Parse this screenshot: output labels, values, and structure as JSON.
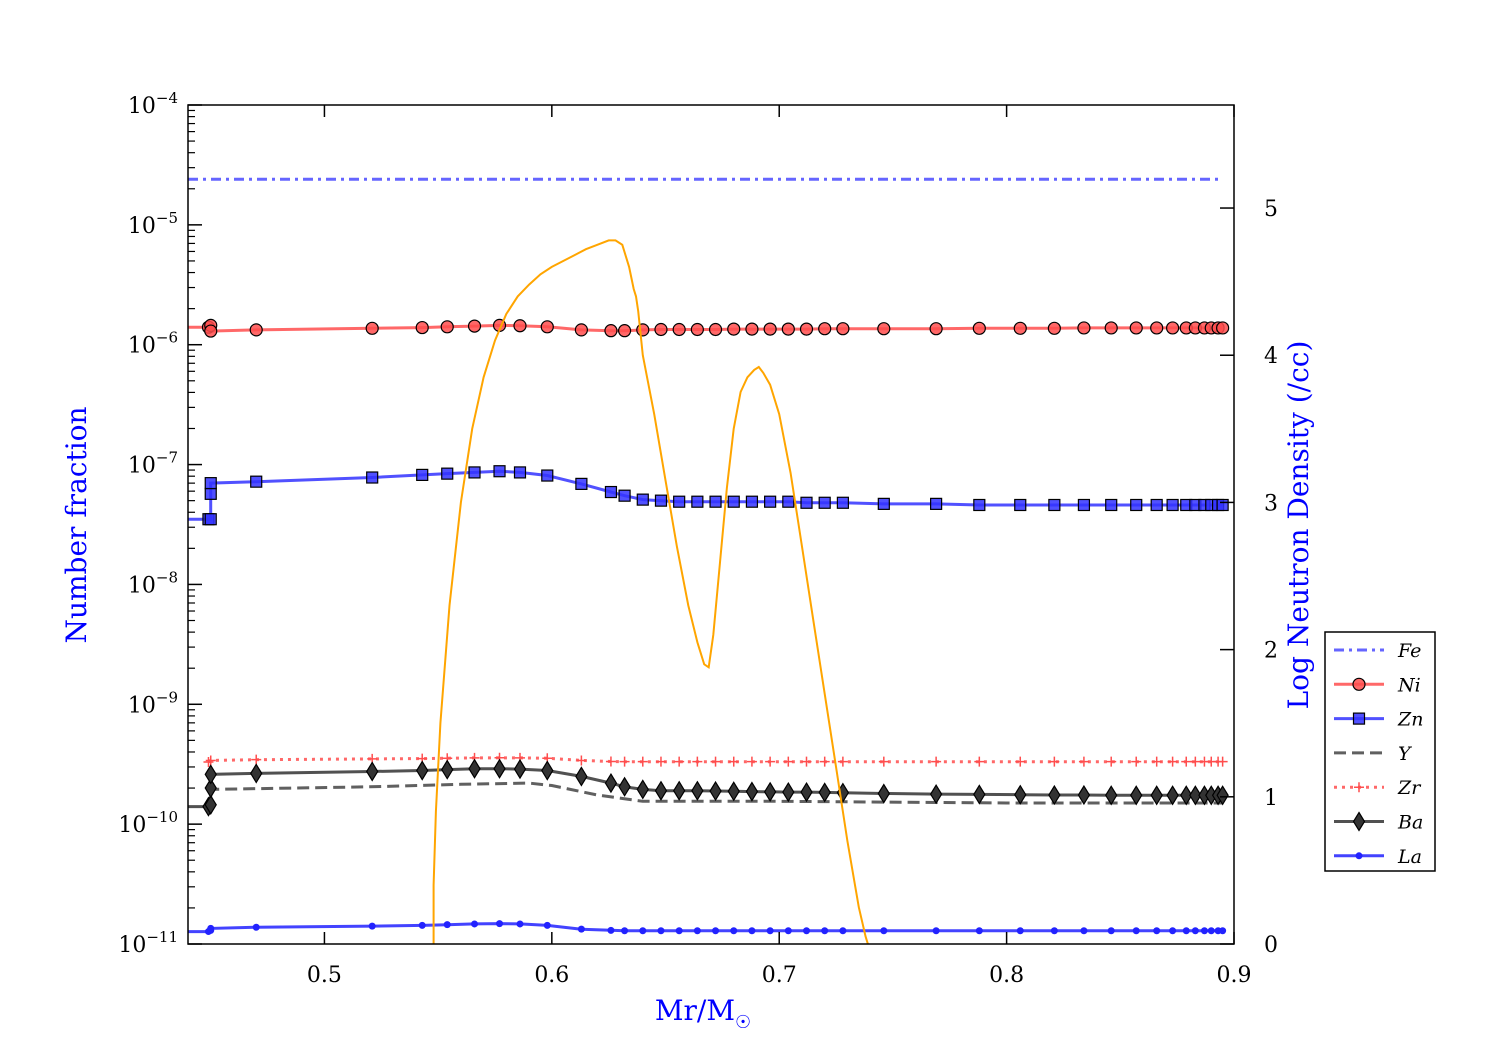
{
  "chart_data": {
    "type": "line",
    "xlabel": "Mr/M",
    "xlabel_symbol": "☉",
    "ylabel_left": "Number fraction",
    "ylabel_right": "Log Neutron Density (/cc)",
    "label_color": "#0000ff",
    "xlim": [
      0.44,
      0.9
    ],
    "xticks": [
      0.5,
      0.6,
      0.7,
      0.8,
      0.9
    ],
    "xtick_labels": [
      "0.5",
      "0.6",
      "0.7",
      "0.8",
      "0.9"
    ],
    "ylim_left_log10": [
      -11,
      -4
    ],
    "ytick_left_labels": [
      {
        "base": "10",
        "exp": "−4",
        "value": -4
      },
      {
        "base": "10",
        "exp": "−5",
        "value": -5
      },
      {
        "base": "10",
        "exp": "−6",
        "value": -6
      },
      {
        "base": "10",
        "exp": "−7",
        "value": -7
      },
      {
        "base": "10",
        "exp": "−8",
        "value": -8
      },
      {
        "base": "10",
        "exp": "−9",
        "value": -9
      },
      {
        "base": "10",
        "exp": "−10",
        "value": -10
      },
      {
        "base": "10",
        "exp": "−11",
        "value": -11
      }
    ],
    "ylim_right": [
      0,
      5.7
    ],
    "yticks_right": [
      0,
      1,
      2,
      3,
      4,
      5
    ],
    "ytick_right_labels": [
      "0",
      "1",
      "2",
      "3",
      "4",
      "5"
    ],
    "legend_position": "right, outside plot",
    "series": [
      {
        "name": "Fe",
        "color": "#4a4aff",
        "dash": "dashdot",
        "marker": "none",
        "x": [
          0.44,
          0.895
        ],
        "y": [
          2.4e-05,
          2.4e-05
        ]
      },
      {
        "name": "Ni",
        "color": "#ff4d4d",
        "dash": "solid",
        "marker": "circle",
        "x": [
          0.44,
          0.449,
          0.45,
          0.45,
          0.47,
          0.521,
          0.543,
          0.554,
          0.566,
          0.577,
          0.586,
          0.598,
          0.613,
          0.626,
          0.632,
          0.64,
          0.648,
          0.656,
          0.664,
          0.672,
          0.68,
          0.688,
          0.696,
          0.704,
          0.712,
          0.72,
          0.728,
          0.746,
          0.769,
          0.788,
          0.806,
          0.821,
          0.834,
          0.846,
          0.857,
          0.866,
          0.873,
          0.879,
          0.883,
          0.887,
          0.89,
          0.893,
          0.895
        ],
        "y": [
          1.4e-06,
          1.4e-06,
          1.45e-06,
          1.3e-06,
          1.33e-06,
          1.37e-06,
          1.39e-06,
          1.41e-06,
          1.43e-06,
          1.45e-06,
          1.44e-06,
          1.41e-06,
          1.33e-06,
          1.31e-06,
          1.31e-06,
          1.33e-06,
          1.34e-06,
          1.34e-06,
          1.34e-06,
          1.34e-06,
          1.35e-06,
          1.35e-06,
          1.35e-06,
          1.35e-06,
          1.35e-06,
          1.36e-06,
          1.36e-06,
          1.36e-06,
          1.36e-06,
          1.37e-06,
          1.37e-06,
          1.37e-06,
          1.38e-06,
          1.38e-06,
          1.38e-06,
          1.38e-06,
          1.38e-06,
          1.38e-06,
          1.38e-06,
          1.38e-06,
          1.38e-06,
          1.38e-06,
          1.38e-06
        ]
      },
      {
        "name": "Zn",
        "color": "#3333ff",
        "dash": "solid",
        "marker": "square",
        "x": [
          0.44,
          0.449,
          0.45,
          0.45,
          0.45,
          0.47,
          0.521,
          0.543,
          0.554,
          0.566,
          0.577,
          0.586,
          0.598,
          0.613,
          0.626,
          0.632,
          0.64,
          0.648,
          0.656,
          0.664,
          0.672,
          0.68,
          0.688,
          0.696,
          0.704,
          0.712,
          0.72,
          0.728,
          0.746,
          0.769,
          0.788,
          0.806,
          0.821,
          0.834,
          0.846,
          0.857,
          0.866,
          0.873,
          0.879,
          0.883,
          0.887,
          0.89,
          0.893,
          0.895
        ],
        "y": [
          3.5e-08,
          3.5e-08,
          3.5e-08,
          5.7e-08,
          7e-08,
          7.2e-08,
          7.8e-08,
          8.2e-08,
          8.4e-08,
          8.6e-08,
          8.8e-08,
          8.6e-08,
          8.1e-08,
          6.9e-08,
          5.9e-08,
          5.5e-08,
          5.1e-08,
          5e-08,
          4.9e-08,
          4.9e-08,
          4.9e-08,
          4.9e-08,
          4.9e-08,
          4.9e-08,
          4.9e-08,
          4.8e-08,
          4.8e-08,
          4.8e-08,
          4.7e-08,
          4.7e-08,
          4.6e-08,
          4.6e-08,
          4.6e-08,
          4.6e-08,
          4.6e-08,
          4.6e-08,
          4.6e-08,
          4.6e-08,
          4.6e-08,
          4.6e-08,
          4.6e-08,
          4.6e-08,
          4.6e-08,
          4.6e-08
        ]
      },
      {
        "name": "Y",
        "color": "#444444",
        "dash": "dashed",
        "marker": "none",
        "x": [
          0.449,
          0.45,
          0.45,
          0.52,
          0.56,
          0.59,
          0.6,
          0.62,
          0.64,
          0.7,
          0.8,
          0.895
        ],
        "y": [
          1.9e-10,
          1.9e-10,
          1.95e-10,
          2.05e-10,
          2.15e-10,
          2.2e-10,
          2.1e-10,
          1.75e-10,
          1.55e-10,
          1.55e-10,
          1.5e-10,
          1.5e-10
        ]
      },
      {
        "name": "Zr",
        "color": "#ff4d4d",
        "dash": "dotted",
        "marker": "plus",
        "x": [
          0.449,
          0.45,
          0.47,
          0.521,
          0.543,
          0.554,
          0.566,
          0.577,
          0.586,
          0.598,
          0.613,
          0.626,
          0.632,
          0.64,
          0.648,
          0.656,
          0.664,
          0.672,
          0.68,
          0.688,
          0.696,
          0.704,
          0.712,
          0.72,
          0.728,
          0.746,
          0.769,
          0.788,
          0.806,
          0.821,
          0.834,
          0.846,
          0.857,
          0.866,
          0.873,
          0.879,
          0.883,
          0.887,
          0.89,
          0.893,
          0.895
        ],
        "y": [
          3.3e-10,
          3.4e-10,
          3.45e-10,
          3.5e-10,
          3.52e-10,
          3.55e-10,
          3.57e-10,
          3.58e-10,
          3.57e-10,
          3.55e-10,
          3.4e-10,
          3.33e-10,
          3.32e-10,
          3.32e-10,
          3.32e-10,
          3.32e-10,
          3.32e-10,
          3.32e-10,
          3.32e-10,
          3.32e-10,
          3.32e-10,
          3.32e-10,
          3.32e-10,
          3.32e-10,
          3.32e-10,
          3.32e-10,
          3.32e-10,
          3.32e-10,
          3.32e-10,
          3.32e-10,
          3.32e-10,
          3.32e-10,
          3.32e-10,
          3.32e-10,
          3.32e-10,
          3.32e-10,
          3.32e-10,
          3.32e-10,
          3.32e-10,
          3.32e-10,
          3.32e-10
        ]
      },
      {
        "name": "Ba",
        "color": "#333333",
        "dash": "solid",
        "marker": "diamond",
        "x": [
          0.44,
          0.449,
          0.45,
          0.45,
          0.45,
          0.47,
          0.521,
          0.543,
          0.554,
          0.566,
          0.577,
          0.586,
          0.598,
          0.613,
          0.626,
          0.632,
          0.64,
          0.648,
          0.656,
          0.664,
          0.672,
          0.68,
          0.688,
          0.696,
          0.704,
          0.712,
          0.72,
          0.728,
          0.746,
          0.769,
          0.788,
          0.806,
          0.821,
          0.834,
          0.846,
          0.857,
          0.866,
          0.873,
          0.879,
          0.883,
          0.887,
          0.89,
          0.893,
          0.895
        ],
        "y": [
          1.4e-10,
          1.4e-10,
          1.45e-10,
          2e-10,
          2.6e-10,
          2.65e-10,
          2.75e-10,
          2.8e-10,
          2.85e-10,
          2.9e-10,
          2.9e-10,
          2.88e-10,
          2.8e-10,
          2.5e-10,
          2.2e-10,
          2.05e-10,
          1.95e-10,
          1.9e-10,
          1.9e-10,
          1.9e-10,
          1.89e-10,
          1.88e-10,
          1.87e-10,
          1.86e-10,
          1.85e-10,
          1.85e-10,
          1.84e-10,
          1.83e-10,
          1.8e-10,
          1.78e-10,
          1.77e-10,
          1.76e-10,
          1.75e-10,
          1.75e-10,
          1.74e-10,
          1.74e-10,
          1.74e-10,
          1.74e-10,
          1.74e-10,
          1.74e-10,
          1.74e-10,
          1.74e-10,
          1.74e-10,
          1.74e-10
        ]
      },
      {
        "name": "La",
        "color": "#2222ff",
        "dash": "solid",
        "marker": "dot",
        "x": [
          0.44,
          0.449,
          0.45,
          0.45,
          0.47,
          0.521,
          0.543,
          0.554,
          0.566,
          0.577,
          0.586,
          0.598,
          0.613,
          0.626,
          0.632,
          0.64,
          0.648,
          0.656,
          0.664,
          0.672,
          0.68,
          0.688,
          0.696,
          0.704,
          0.712,
          0.72,
          0.728,
          0.746,
          0.769,
          0.788,
          0.806,
          0.821,
          0.834,
          0.846,
          0.857,
          0.866,
          0.873,
          0.879,
          0.883,
          0.887,
          0.89,
          0.893,
          0.895
        ],
        "y": [
          1.27e-11,
          1.27e-11,
          1.3e-11,
          1.35e-11,
          1.38e-11,
          1.41e-11,
          1.43e-11,
          1.45e-11,
          1.47e-11,
          1.48e-11,
          1.47e-11,
          1.43e-11,
          1.33e-11,
          1.3e-11,
          1.29e-11,
          1.29e-11,
          1.29e-11,
          1.29e-11,
          1.29e-11,
          1.29e-11,
          1.29e-11,
          1.29e-11,
          1.29e-11,
          1.29e-11,
          1.29e-11,
          1.29e-11,
          1.29e-11,
          1.29e-11,
          1.29e-11,
          1.29e-11,
          1.29e-11,
          1.29e-11,
          1.29e-11,
          1.29e-11,
          1.29e-11,
          1.29e-11,
          1.29e-11,
          1.29e-11,
          1.29e-11,
          1.29e-11,
          1.29e-11,
          1.29e-11,
          1.29e-11
        ]
      }
    ],
    "neutron_density": {
      "color": "#ffa500",
      "axis": "right",
      "x": [
        0.548,
        0.548,
        0.549,
        0.551,
        0.555,
        0.56,
        0.565,
        0.57,
        0.575,
        0.58,
        0.585,
        0.59,
        0.595,
        0.6,
        0.605,
        0.61,
        0.615,
        0.62,
        0.625,
        0.628,
        0.631,
        0.634,
        0.636,
        0.637,
        0.638,
        0.64,
        0.645,
        0.65,
        0.655,
        0.66,
        0.664,
        0.667,
        0.669,
        0.671,
        0.674,
        0.677,
        0.68,
        0.683,
        0.686,
        0.689,
        0.691,
        0.693,
        0.696,
        0.7,
        0.705,
        0.71,
        0.715,
        0.72,
        0.725,
        0.73,
        0.735,
        0.738,
        0.739
      ],
      "y": [
        0.0,
        0.4,
        0.9,
        1.5,
        2.3,
        3.0,
        3.5,
        3.85,
        4.1,
        4.28,
        4.4,
        4.48,
        4.55,
        4.6,
        4.64,
        4.68,
        4.72,
        4.75,
        4.78,
        4.78,
        4.75,
        4.6,
        4.45,
        4.4,
        4.3,
        4.0,
        3.6,
        3.15,
        2.7,
        2.3,
        2.05,
        1.9,
        1.88,
        2.1,
        2.6,
        3.1,
        3.5,
        3.75,
        3.85,
        3.9,
        3.92,
        3.88,
        3.8,
        3.6,
        3.2,
        2.7,
        2.2,
        1.7,
        1.2,
        0.7,
        0.25,
        0.05,
        0.0
      ]
    }
  }
}
